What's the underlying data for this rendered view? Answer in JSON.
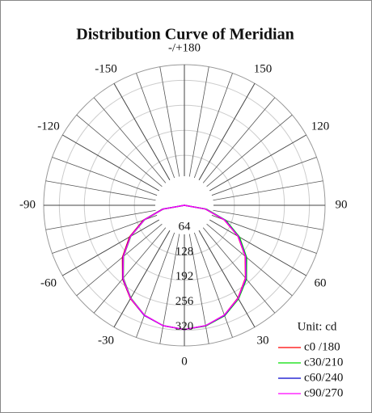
{
  "chart_data": {
    "type": "polar",
    "title": "Distribution Curve of  Meridian",
    "unit_label": "Unit: cd",
    "x": [
      -90,
      -80,
      -70,
      -60,
      -50,
      -40,
      -30,
      -20,
      -10,
      0,
      10,
      20,
      30,
      40,
      50,
      60,
      70,
      80,
      90
    ],
    "series": [
      {
        "name": "c0 /180",
        "color": "#ff0000",
        "values": [
          0,
          57,
          112,
          162,
          207,
          246,
          276,
          300,
          313,
          318,
          313,
          299,
          274,
          243,
          203,
          158,
          108,
          54,
          0
        ]
      },
      {
        "name": "c30/210",
        "color": "#00dd00",
        "values": [
          0,
          54,
          108,
          158,
          203,
          243,
          274,
          299,
          313,
          318,
          314,
          301,
          277,
          247,
          208,
          163,
          113,
          58,
          0
        ]
      },
      {
        "name": "c60/240",
        "color": "#0000cc",
        "values": [
          0,
          56,
          110,
          160,
          205,
          245,
          275,
          300,
          313,
          318,
          313,
          300,
          275,
          245,
          205,
          160,
          110,
          55,
          0
        ]
      },
      {
        "name": "c90/270",
        "color": "#ff00ff",
        "values": [
          0,
          55,
          109,
          159,
          204,
          244,
          275,
          299,
          313,
          318,
          313,
          299,
          275,
          244,
          204,
          159,
          109,
          55,
          0
        ]
      }
    ],
    "rlim": [
      0,
      360
    ],
    "rticks": [
      64,
      128,
      192,
      256,
      320
    ],
    "theta_ticks": [
      0,
      30,
      60,
      90,
      120,
      150,
      {
        "value": 180,
        "label": "-/+180"
      },
      -150,
      -120,
      -90,
      -60,
      -30
    ],
    "grid": true
  }
}
